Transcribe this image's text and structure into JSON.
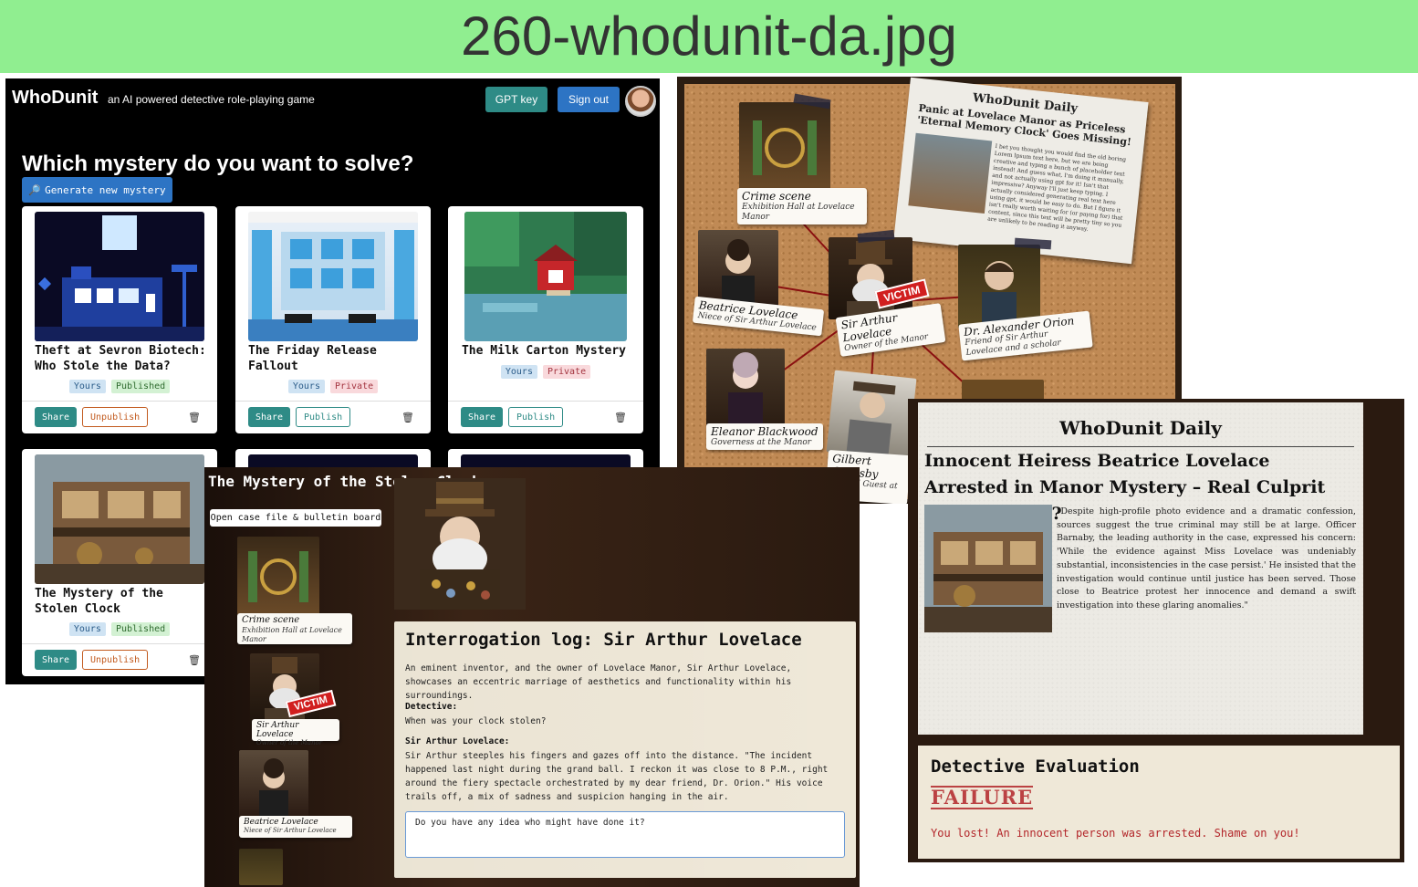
{
  "banner": {
    "title": "260-whodunit-da.jpg"
  },
  "home": {
    "brand": "WhoDunit",
    "tagline": "an AI powered detective role-playing game",
    "gpt_key_label": "GPT key",
    "sign_out_label": "Sign out",
    "heading": "Which mystery do you want to solve?",
    "generate_label": "Generate new mystery",
    "cards": [
      {
        "title": "Theft at Sevron Biotech: Who Stole the Data?",
        "tags": [
          "Yours",
          "Published"
        ],
        "share": "Share",
        "action": "Unpublish"
      },
      {
        "title": "The Friday Release Fallout",
        "tags": [
          "Yours",
          "Private"
        ],
        "share": "Share",
        "action": "Publish"
      },
      {
        "title": "The Milk Carton Mystery",
        "tags": [
          "Yours",
          "Private"
        ],
        "share": "Share",
        "action": "Publish"
      },
      {
        "title": "The Mystery of the Stolen Clock",
        "tags": [
          "Yours",
          "Published"
        ],
        "share": "Share",
        "action": "Unpublish"
      }
    ]
  },
  "board": {
    "newspaper": {
      "masthead": "WhoDunit Daily",
      "headline": "Panic at Lovelace Manor as Priceless 'Eternal Memory Clock' Goes Missing!",
      "body": "I bet you thought you would find the old boring Lorem Ipsum text here, but we are being creative and typing a bunch of placeholder text instead! And guess what, I'm doing it manually, and not actually using gpt for it! Isn't that impressive? Anyway I'll just keep typing. I actually considered generating real text here using gpt, it would be easy to do. But I figure it isn't really worth waiting for (or paying for) that content, since this text will be pretty tiny so you are unlikely to be reading it anyway."
    },
    "victim_label": "VICTIM",
    "items": [
      {
        "name": "Crime scene",
        "role": "Exhibition Hall at Lovelace Manor"
      },
      {
        "name": "Beatrice Lovelace",
        "role": "Niece of Sir Arthur Lovelace"
      },
      {
        "name": "Sir Arthur Lovelace",
        "role": "Owner of the Manor"
      },
      {
        "name": "Dr. Alexander Orion",
        "role": "Friend of Sir Arthur Lovelace and a scholar"
      },
      {
        "name": "Eleanor Blackwood",
        "role": "Governess at the Manor"
      },
      {
        "name": "Gilbert Grimsby",
        "role": "Invited Guest at M"
      }
    ]
  },
  "interrogation": {
    "case_title": "The Mystery of the Stolen Clock",
    "open_case_label": "Open case file & bulletin board",
    "victim_label": "VICTIM",
    "sidebar": [
      {
        "name": "Crime scene",
        "role": "Exhibition Hall at Lovelace Manor"
      },
      {
        "name": "Sir Arthur Lovelace",
        "role": "Owner of the Manor"
      },
      {
        "name": "Beatrice Lovelace",
        "role": "Niece of Sir Arthur Lovelace"
      }
    ],
    "log_title": "Interrogation log: Sir Arthur Lovelace",
    "intro": "An eminent inventor, and the owner of Lovelace Manor, Sir Arthur Lovelace, showcases an eccentric marriage of aesthetics and functionality within his surroundings.",
    "detective_label": "Detective:",
    "detective_text": "When was your clock stolen?",
    "suspect_label": "Sir Arthur Lovelace:",
    "suspect_text": "Sir Arthur steeples his fingers and gazes off into the distance. \"The incident happened last night during the grand ball. I reckon it was close to 8 P.M., right around the fiery spectacle orchestrated by my dear friend, Dr. Orion.\" His voice trails off, a mix of sadness and suspicion hanging in the air.",
    "question_value": "Do you have any idea who might have done it?"
  },
  "result": {
    "masthead": "WhoDunit Daily",
    "headline": "Innocent Heiress Beatrice Lovelace Arrested in Manor Mystery – Real Culprit Still at Large?",
    "body": "\"Despite high-profile photo evidence and a dramatic confession, sources suggest the true criminal may still be at large. Officer Barnaby, the leading authority in the case, expressed his concern: 'While the evidence against Miss Lovelace was undeniably substantial, inconsistencies in the case persist.' He insisted that the investigation would continue until justice has been served. Those close to Beatrice protest her innocence and demand a swift investigation into these glaring anomalies.\"",
    "eval_title": "Detective Evaluation",
    "stamp": "FAILURE",
    "message": "You lost! An innocent person was arrested. Shame on you!"
  },
  "colors": {
    "banner": "#90ee90",
    "teal": "#2e8b86",
    "blue": "#2d74c4",
    "cork": "#c08a55",
    "red": "#d11f1f"
  }
}
